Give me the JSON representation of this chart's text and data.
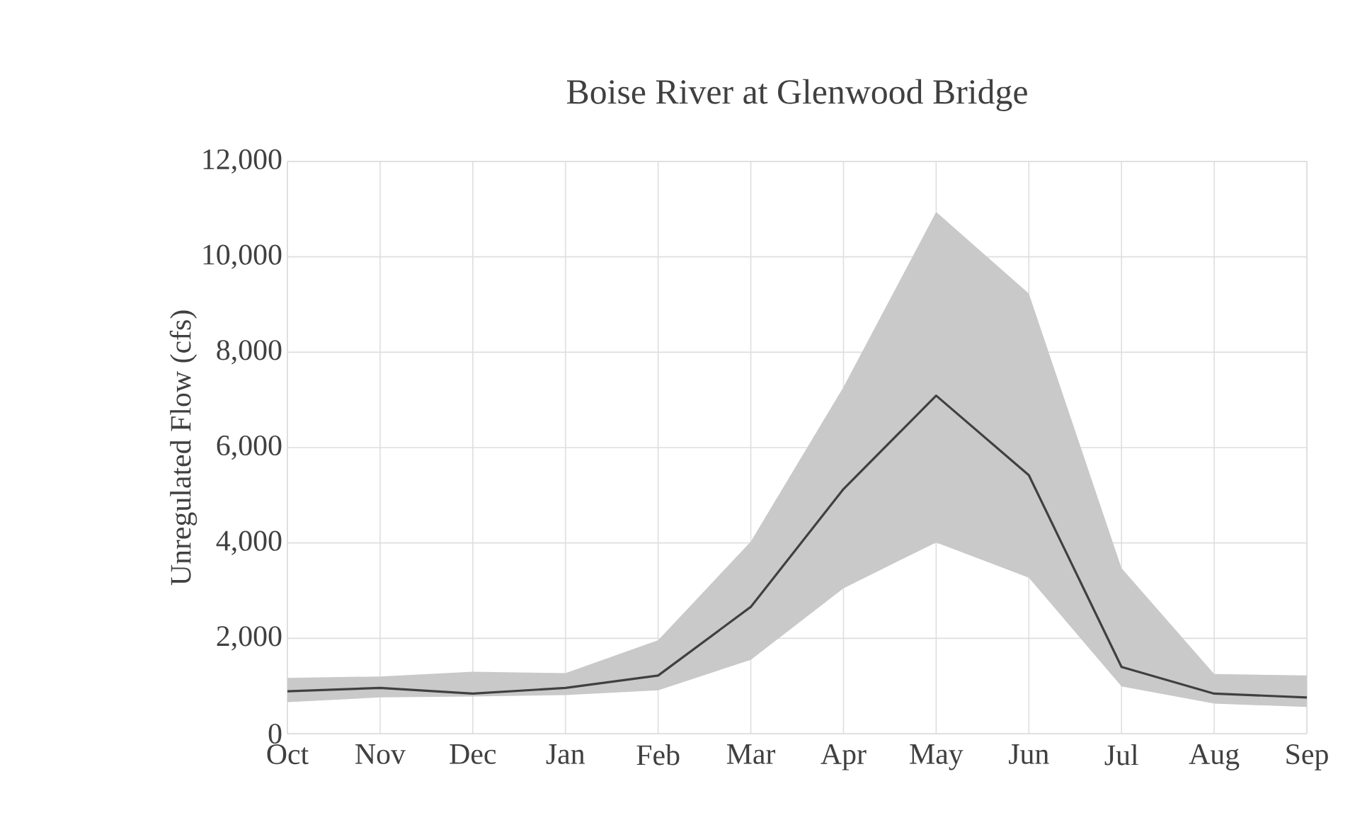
{
  "chart_data": {
    "type": "line",
    "title": "Boise River at Glenwood Bridge",
    "ylabel": "Unregulated Flow (cfs)",
    "categories": [
      "Oct",
      "Nov",
      "Dec",
      "Jan",
      "Feb",
      "Mar",
      "Apr",
      "May",
      "Jun",
      "Jul",
      "Aug",
      "Sep"
    ],
    "series": [
      {
        "color": "#404040",
        "values": [
          890,
          960,
          840,
          960,
          1220,
          2660,
          5130,
          7090,
          5420,
          1400,
          840,
          760
        ],
        "lower": [
          660,
          760,
          780,
          810,
          910,
          1550,
          3050,
          4010,
          3270,
          990,
          630,
          560
        ],
        "upper": [
          1170,
          1200,
          1300,
          1270,
          1960,
          4030,
          7270,
          10940,
          9230,
          3470,
          1250,
          1220
        ]
      }
    ],
    "ylim": [
      0,
      12000
    ],
    "yticks": [
      {
        "value": 0,
        "label": "0"
      },
      {
        "value": 2000,
        "label": "2,000"
      },
      {
        "value": 4000,
        "label": "4,000"
      },
      {
        "value": 6000,
        "label": "6,000"
      },
      {
        "value": 8000,
        "label": "8,000"
      },
      {
        "value": 10000,
        "label": "10,000"
      },
      {
        "value": 12000,
        "label": "12,000"
      }
    ],
    "grid": true,
    "legend": false,
    "marker": "none",
    "line_style": "solid"
  }
}
